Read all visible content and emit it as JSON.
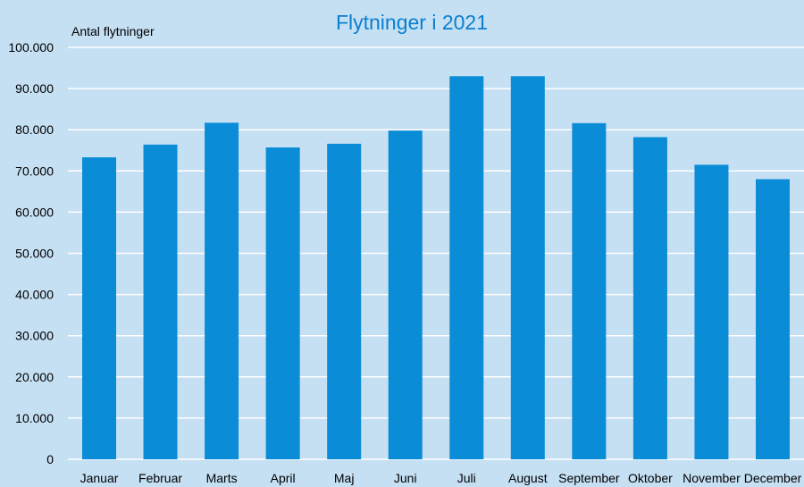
{
  "chart_data": {
    "type": "bar",
    "title": "Flytninger i 2021",
    "xlabel": "",
    "ylabel": "Antal flytninger",
    "categories": [
      "Januar",
      "Februar",
      "Marts",
      "April",
      "Maj",
      "Juni",
      "Juli",
      "August",
      "September",
      "Oktober",
      "November",
      "December"
    ],
    "values": [
      73300,
      76400,
      81700,
      75700,
      76600,
      79800,
      93000,
      93000,
      81600,
      78200,
      71500,
      68000
    ],
    "ylim": [
      0,
      100000
    ],
    "yticks": [
      0,
      10000,
      20000,
      30000,
      40000,
      50000,
      60000,
      70000,
      80000,
      90000,
      100000
    ],
    "ytick_labels": [
      "0",
      "10.000",
      "20.000",
      "30.000",
      "40.000",
      "50.000",
      "60.000",
      "70.000",
      "80.000",
      "90.000",
      "100.000"
    ],
    "grid": true,
    "legend": "none",
    "colors": {
      "background": "#c5dff3",
      "bar": "#0a8dd6",
      "title": "#0a7fd0",
      "gridline": "#ffffff"
    }
  }
}
